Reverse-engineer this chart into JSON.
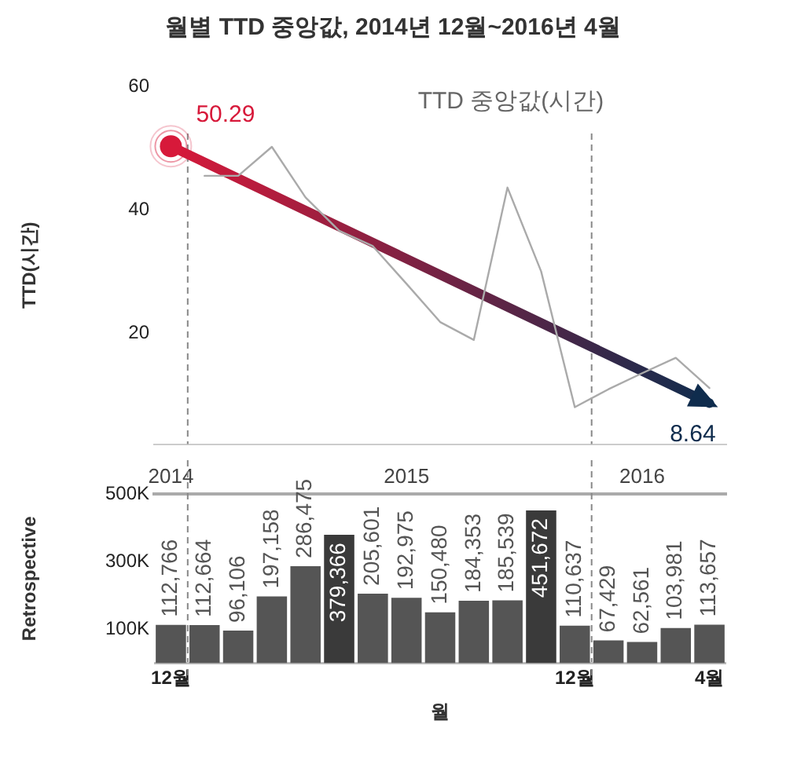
{
  "chart_data": [
    {
      "type": "line",
      "title": "월별 TTD 중앙값, 2014년 12월~2016년 4월",
      "ylabel": "TTD(시간)",
      "xlim": [
        "2014-11-16",
        "2016-04-16"
      ],
      "ylim": [
        2,
        60
      ],
      "yticks": [
        20,
        40,
        60
      ],
      "tick_labels": "y",
      "ref_lines": [
        {
          "axis": "x",
          "value": "2014-12-16",
          "color": "#888888",
          "line_style": "dashed"
        },
        {
          "axis": "x",
          "value": "2015-12-16",
          "color": "#888888",
          "line_style": "dashed"
        }
      ],
      "series": [
        {
          "name": "TTD 중앙값(시간)",
          "color": "#aaaaaa",
          "x": [
            "2015-01",
            "2015-02",
            "2015-03",
            "2015-04",
            "2015-05",
            "2015-06",
            "2015-07",
            "2015-08",
            "2015-09",
            "2015-10",
            "2015-11",
            "2015-12",
            "2016-01",
            "2016-02",
            "2016-03",
            "2016-04"
          ],
          "values": [
            45.5,
            45.5,
            50.2,
            42,
            36.6,
            34.1,
            28,
            21.8,
            18.9,
            43.6,
            30,
            8.0,
            10.9,
            13.5,
            16.0,
            11.1
          ]
        },
        {
          "type": "line",
          "x": [
            "2014-12",
            "2016-04"
          ],
          "values": [
            50.29,
            8.64
          ],
          "colors": [
            "#d7193a",
            "#0f2c4d"
          ],
          "value_labels": [
            "50.29",
            "8.64"
          ],
          "marker": "circle"
        }
      ]
    },
    {
      "type": "bar",
      "xlabel": "월",
      "ylabel": "Retrospective",
      "x": [
        "2014-12",
        "2015-01",
        "2015-02",
        "2015-03",
        "2015-04",
        "2015-05",
        "2015-06",
        "2015-07",
        "2015-08",
        "2015-09",
        "2015-10",
        "2015-11",
        "2015-12",
        "2016-01",
        "2016-02",
        "2016-03",
        "2016-04"
      ],
      "xlim": [
        "2014-11-16",
        "2016-04-16"
      ],
      "xticks": [
        {
          "value": "2014-12",
          "label": "12월"
        },
        {
          "value": "2015-12",
          "label": "12월"
        },
        {
          "value": "2016-04",
          "label": "4월"
        }
      ],
      "x2lim": [
        "2014-11-16",
        "2016-04-16"
      ],
      "x2ticks": [
        {
          "value": "2014-12",
          "label": "2014"
        },
        {
          "value": "2015-07",
          "label": "2015"
        },
        {
          "value": "2016-02",
          "label": "2016"
        }
      ],
      "ylim": [
        0,
        500000
      ],
      "yticks": [
        {
          "value": 100000,
          "label": "100K"
        },
        {
          "value": 300000,
          "label": "300K"
        },
        {
          "value": 500000,
          "label": "500K"
        }
      ],
      "ref_lines": [
        {
          "axis": "x",
          "value": "2014-12-16",
          "color": "#888888",
          "line_style": "dashed"
        },
        {
          "axis": "x",
          "value": "2015-12-16",
          "color": "#888888",
          "line_style": "dashed"
        }
      ],
      "values": [
        112766,
        112664,
        96106,
        197158,
        286475,
        379366,
        205601,
        192975,
        150480,
        184353,
        185539,
        451672,
        110637,
        67429,
        62561,
        103981,
        113657
      ],
      "colors": [
        "#555555",
        "#555555",
        "#555555",
        "#555555",
        "#555555",
        "#3a3a3a",
        "#555555",
        "#555555",
        "#555555",
        "#555555",
        "#555555",
        "#3a3a3a",
        "#555555",
        "#555555",
        "#555555",
        "#555555",
        "#555555"
      ],
      "value_labels": [
        "112,766",
        "112,664",
        "96,106",
        "197,158",
        "286,475",
        "379,366",
        "205,601",
        "192,975",
        "150,480",
        "184,353",
        "185,539",
        "451,672",
        "110,637",
        "67,429",
        "62,561",
        "103,981",
        "113,657"
      ]
    }
  ]
}
